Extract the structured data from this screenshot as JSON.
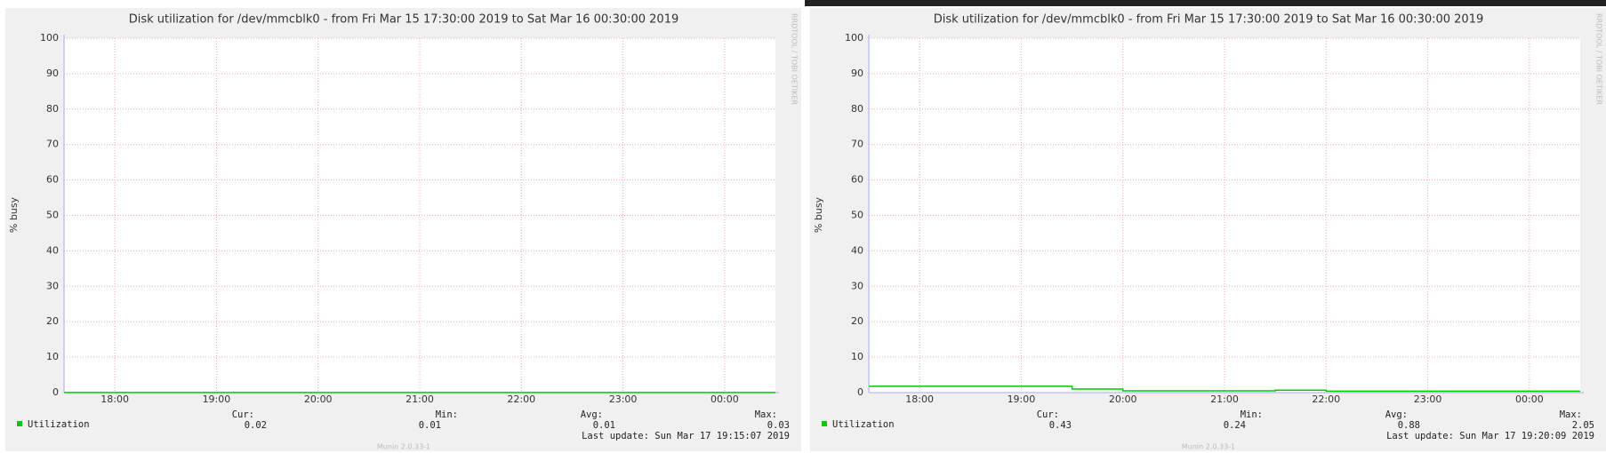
{
  "chart_data": [
    {
      "type": "line",
      "step": true,
      "title": "Disk utilization for /dev/mmcblk0 - from Fri Mar 15 17:30:00 2019 to Sat Mar 16 00:30:00 2019",
      "y_label": "% busy",
      "x": [
        17.5,
        24.5
      ],
      "series": [
        {
          "name": "Utilization",
          "color": "#00cc00",
          "values": [
            0.02,
            0.02
          ]
        }
      ],
      "xlim": [
        17.5,
        24.5
      ],
      "xticks": [
        {
          "value": 18,
          "label": "18:00"
        },
        {
          "value": 19,
          "label": "19:00"
        },
        {
          "value": 20,
          "label": "20:00"
        },
        {
          "value": 21,
          "label": "21:00"
        },
        {
          "value": 22,
          "label": "22:00"
        },
        {
          "value": 23,
          "label": "23:00"
        },
        {
          "value": 24,
          "label": "00:00"
        }
      ],
      "ylim": [
        0,
        100
      ],
      "yticks": [
        0,
        10,
        20,
        30,
        40,
        50,
        60,
        70,
        80,
        90,
        100
      ],
      "grid": true,
      "stats": {
        "cur_label": "Cur:",
        "cur": 0.02,
        "min_label": "Min:",
        "min": 0.01,
        "avg_label": "Avg:",
        "avg": 0.01,
        "max_label": "Max:",
        "max": 0.03
      },
      "last_update": "Last update: Sun Mar 17 19:15:07 2019",
      "footer": "Munin 2.0.33-1",
      "watermark": "RRDTOOL / TOBI OETIKER"
    },
    {
      "type": "line",
      "step": true,
      "title": "Disk utilization for /dev/mmcblk0 - from Fri Mar 15 17:30:00 2019 to Sat Mar 16 00:30:00 2019",
      "y_label": "% busy",
      "x": [
        17.5,
        19.5,
        20,
        21.5,
        22,
        24.5
      ],
      "series": [
        {
          "name": "Utilization",
          "color": "#00cc00",
          "values": [
            1.8,
            1.0,
            0.5,
            0.7,
            0.4,
            0.4
          ]
        }
      ],
      "xlim": [
        17.5,
        24.5
      ],
      "xticks": [
        {
          "value": 18,
          "label": "18:00"
        },
        {
          "value": 19,
          "label": "19:00"
        },
        {
          "value": 20,
          "label": "20:00"
        },
        {
          "value": 21,
          "label": "21:00"
        },
        {
          "value": 22,
          "label": "22:00"
        },
        {
          "value": 23,
          "label": "23:00"
        },
        {
          "value": 24,
          "label": "00:00"
        }
      ],
      "ylim": [
        0,
        100
      ],
      "yticks": [
        0,
        10,
        20,
        30,
        40,
        50,
        60,
        70,
        80,
        90,
        100
      ],
      "grid": true,
      "stats": {
        "cur_label": "Cur:",
        "cur": 0.43,
        "min_label": "Min:",
        "min": 0.24,
        "avg_label": "Avg:",
        "avg": 0.88,
        "max_label": "Max:",
        "max": 2.05
      },
      "last_update": "Last update: Sun Mar 17 19:20:09 2019",
      "footer": "Munin 2.0.33-1",
      "watermark": "RRDTOOL / TOBI OETIKER"
    }
  ]
}
